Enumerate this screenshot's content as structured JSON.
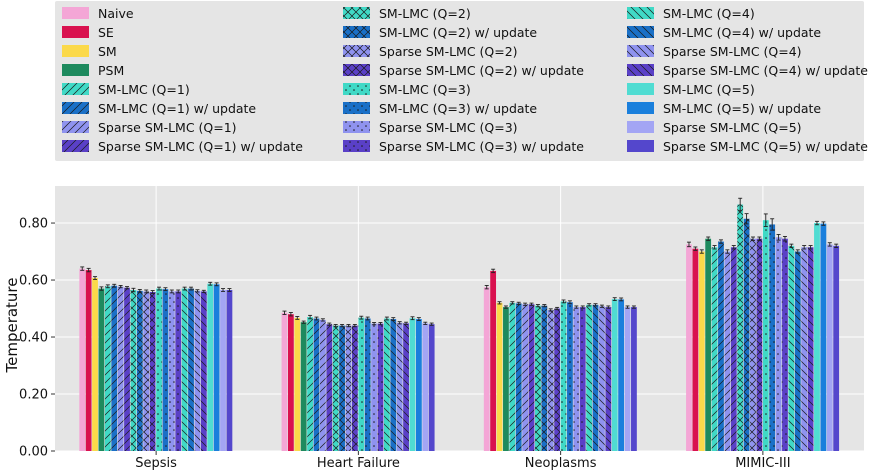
{
  "chart_data": {
    "type": "bar",
    "xlabel": "",
    "ylabel": "Temperature",
    "ylim": [
      0,
      0.93
    ],
    "yticks": [
      "0.00",
      "0.20",
      "0.40",
      "0.60",
      "0.80"
    ],
    "grid": true,
    "legend_position": "top",
    "categories": [
      "Sepsis",
      "Heart Failure",
      "Neoplasms",
      "MIMIC-III"
    ],
    "series": [
      {
        "name": "Naive",
        "color": "#f4a6d6",
        "hatch": "none",
        "values": [
          0.64,
          0.485,
          0.575,
          0.725
        ],
        "err": [
          0.006,
          0.006,
          0.006,
          0.008
        ]
      },
      {
        "name": "SE",
        "color": "#d9114f",
        "hatch": "none",
        "values": [
          0.635,
          0.48,
          0.632,
          0.71
        ],
        "err": [
          0.006,
          0.006,
          0.006,
          0.006
        ]
      },
      {
        "name": "SM",
        "color": "#fbd94a",
        "hatch": "none",
        "values": [
          0.607,
          0.467,
          0.52,
          0.7
        ],
        "err": [
          0.005,
          0.005,
          0.004,
          0.006
        ]
      },
      {
        "name": "PSM",
        "color": "#1e8a5e",
        "hatch": "none",
        "values": [
          0.57,
          0.452,
          0.505,
          0.745
        ],
        "err": [
          0.006,
          0.004,
          0.004,
          0.006
        ]
      },
      {
        "name": "SM-LMC (Q=1)",
        "color": "#40d9c6",
        "hatch": "diag",
        "values": [
          0.578,
          0.47,
          0.52,
          0.715
        ],
        "err": [
          0.005,
          0.006,
          0.004,
          0.006
        ]
      },
      {
        "name": "SM-LMC (Q=1) w/ update",
        "color": "#1a70c7",
        "hatch": "diag",
        "values": [
          0.58,
          0.465,
          0.518,
          0.735
        ],
        "err": [
          0.005,
          0.005,
          0.004,
          0.006
        ]
      },
      {
        "name": "Sparse SM-LMC (Q=1)",
        "color": "#8f93ef",
        "hatch": "diag",
        "values": [
          0.577,
          0.46,
          0.515,
          0.7
        ],
        "err": [
          0.004,
          0.004,
          0.004,
          0.006
        ]
      },
      {
        "name": "Sparse SM-LMC (Q=1) w/ update",
        "color": "#5a40c7",
        "hatch": "diag",
        "values": [
          0.573,
          0.445,
          0.515,
          0.715
        ],
        "err": [
          0.004,
          0.004,
          0.004,
          0.006
        ]
      },
      {
        "name": "SM-LMC (Q=2)",
        "color": "#40d9c6",
        "hatch": "cross",
        "values": [
          0.565,
          0.44,
          0.51,
          0.865
        ],
        "err": [
          0.006,
          0.004,
          0.004,
          0.022
        ]
      },
      {
        "name": "SM-LMC (Q=2) w/ update",
        "color": "#1a70c7",
        "hatch": "cross",
        "values": [
          0.562,
          0.44,
          0.51,
          0.815
        ],
        "err": [
          0.005,
          0.004,
          0.004,
          0.018
        ]
      },
      {
        "name": "Sparse SM-LMC (Q=2)",
        "color": "#8f93ef",
        "hatch": "cross",
        "values": [
          0.56,
          0.44,
          0.495,
          0.745
        ],
        "err": [
          0.005,
          0.004,
          0.004,
          0.006
        ]
      },
      {
        "name": "Sparse SM-LMC (Q=2) w/ update",
        "color": "#5a40c7",
        "hatch": "cross",
        "values": [
          0.558,
          0.44,
          0.5,
          0.745
        ],
        "err": [
          0.005,
          0.004,
          0.004,
          0.006
        ]
      },
      {
        "name": "SM-LMC (Q=3)",
        "color": "#40d9c6",
        "hatch": "dots",
        "values": [
          0.57,
          0.468,
          0.525,
          0.81
        ],
        "err": [
          0.005,
          0.005,
          0.005,
          0.022
        ]
      },
      {
        "name": "SM-LMC (Q=3) w/ update",
        "color": "#1a70c7",
        "hatch": "dots",
        "values": [
          0.568,
          0.465,
          0.522,
          0.795
        ],
        "err": [
          0.005,
          0.005,
          0.005,
          0.02
        ]
      },
      {
        "name": "Sparse SM-LMC (Q=3)",
        "color": "#8f93ef",
        "hatch": "dots",
        "values": [
          0.56,
          0.447,
          0.505,
          0.75
        ],
        "err": [
          0.005,
          0.004,
          0.004,
          0.01
        ]
      },
      {
        "name": "Sparse SM-LMC (Q=3) w/ update",
        "color": "#5a40c7",
        "hatch": "dots",
        "values": [
          0.56,
          0.447,
          0.505,
          0.745
        ],
        "err": [
          0.005,
          0.004,
          0.004,
          0.008
        ]
      },
      {
        "name": "SM-LMC (Q=4)",
        "color": "#40d9c6",
        "hatch": "diag2",
        "values": [
          0.57,
          0.465,
          0.513,
          0.72
        ],
        "err": [
          0.005,
          0.005,
          0.004,
          0.006
        ]
      },
      {
        "name": "SM-LMC (Q=4) w/ update",
        "color": "#1a70c7",
        "hatch": "diag2",
        "values": [
          0.57,
          0.463,
          0.513,
          0.7
        ],
        "err": [
          0.005,
          0.005,
          0.004,
          0.006
        ]
      },
      {
        "name": "Sparse SM-LMC (Q=4)",
        "color": "#8f93ef",
        "hatch": "diag2",
        "values": [
          0.562,
          0.45,
          0.508,
          0.715
        ],
        "err": [
          0.004,
          0.004,
          0.004,
          0.006
        ]
      },
      {
        "name": "Sparse SM-LMC (Q=4) w/ update",
        "color": "#5a40c7",
        "hatch": "diag2",
        "values": [
          0.56,
          0.448,
          0.505,
          0.715
        ],
        "err": [
          0.004,
          0.004,
          0.004,
          0.006
        ]
      },
      {
        "name": "SM-LMC (Q=5)",
        "color": "#50dcd2",
        "hatch": "none",
        "values": [
          0.587,
          0.466,
          0.533,
          0.8
        ],
        "err": [
          0.005,
          0.005,
          0.005,
          0.006
        ]
      },
      {
        "name": "SM-LMC (Q=5) w/ update",
        "color": "#1a7fdc",
        "hatch": "none",
        "values": [
          0.585,
          0.463,
          0.532,
          0.798
        ],
        "err": [
          0.005,
          0.005,
          0.005,
          0.006
        ]
      },
      {
        "name": "Sparse SM-LMC (Q=5)",
        "color": "#a3a5f4",
        "hatch": "none",
        "values": [
          0.565,
          0.448,
          0.505,
          0.725
        ],
        "err": [
          0.005,
          0.004,
          0.004,
          0.006
        ]
      },
      {
        "name": "Sparse SM-LMC (Q=5) w/ update",
        "color": "#5447cc",
        "hatch": "none",
        "values": [
          0.565,
          0.445,
          0.505,
          0.72
        ],
        "err": [
          0.005,
          0.004,
          0.004,
          0.006
        ]
      }
    ]
  }
}
